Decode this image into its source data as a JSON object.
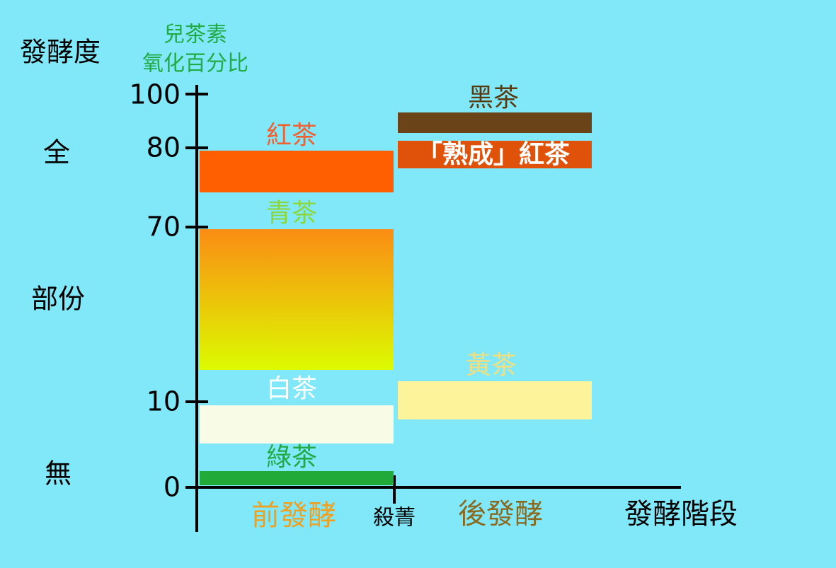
{
  "axis": {
    "title": "發酵度",
    "subtitle_lines": [
      "兒茶素",
      "氧化百分比"
    ],
    "levels": [
      "全",
      "部份",
      "無"
    ],
    "ticks": [
      "100",
      "80",
      "70",
      "10",
      "0"
    ],
    "x_title": "發酵階段"
  },
  "stages": [
    "前發酵",
    "殺菁",
    "後發酵"
  ],
  "teas": [
    "紅茶",
    "青茶",
    "白茶",
    "綠茶",
    "黑茶",
    "「熟成」紅茶",
    "黃茶"
  ]
}
